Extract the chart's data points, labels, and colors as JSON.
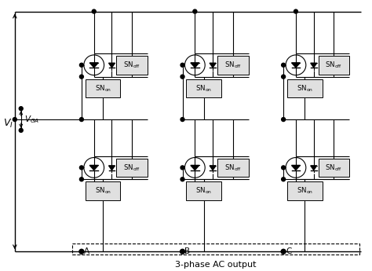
{
  "title": "3-phase AC output",
  "VI_label": "$V_I$",
  "VGA_label": "$V_{GA}$",
  "SN_off_label": "SN$_\\mathrm{off}$",
  "SN_on_label": "SN$_\\mathrm{on}$",
  "phase_labels": [
    "A",
    "B",
    "C"
  ],
  "bg_color": "#ffffff",
  "lw": 0.8,
  "dpi": 100,
  "figw": 4.74,
  "figh": 3.45
}
